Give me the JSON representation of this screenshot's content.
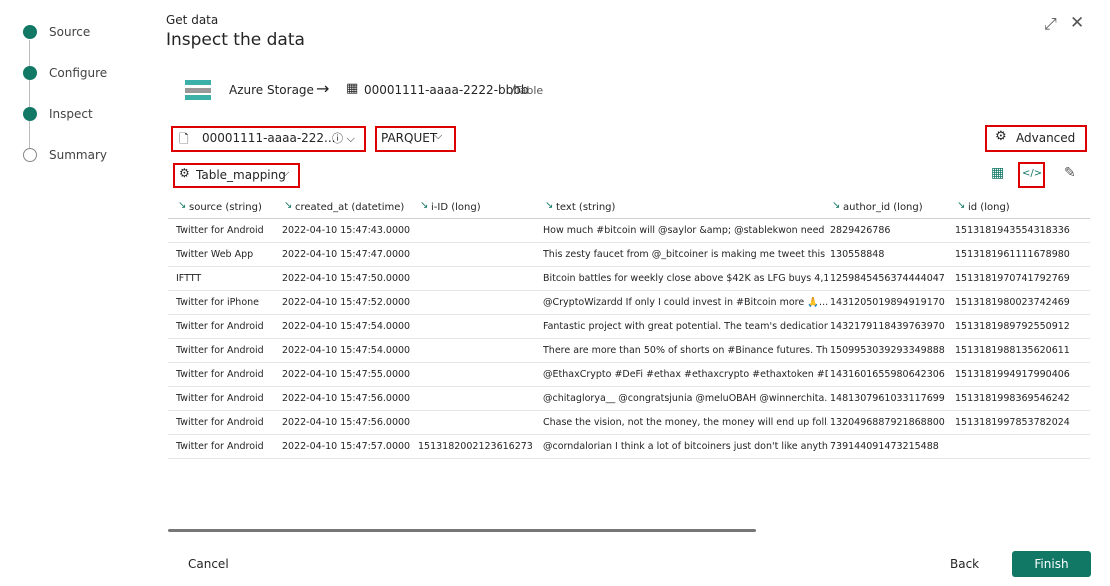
{
  "steps": [
    "Source",
    "Configure",
    "Inspect",
    "Summary"
  ],
  "header": {
    "subtitle": "Get data",
    "title": "Inspect the data"
  },
  "source": {
    "name": "Azure Storage",
    "target": "00001111-aaaa-2222-bbbb",
    "suffix": "/Table"
  },
  "toolbar": {
    "file": "00001111-aaaa-222...",
    "format": "PARQUET",
    "advanced": "Advanced",
    "mapping": "Table_mapping"
  },
  "table": {
    "columns": [
      "source (string)",
      "created_at (datetime)",
      "i-ID (long)",
      "text (string)",
      "author_id (long)",
      "id (long)"
    ],
    "rows": [
      [
        "Twitter for Android",
        "2022-04-10 15:47:43.0000",
        null,
        "How much #bitcoin will @saylor &amp; @stablekwon need ...",
        "2829426786",
        "1513181943554318336"
      ],
      [
        "Twitter Web App",
        "2022-04-10 15:47:47.0000",
        null,
        "This zesty faucet from @_bitcoiner is making me tweet this ...",
        "130558848",
        "1513181961111678980"
      ],
      [
        "IFTTT",
        "2022-04-10 15:47:50.0000",
        null,
        "Bitcoin battles for weekly close above $42K as LFG buys 4,1...",
        "1259845456374444047",
        "1513181970741792769"
      ],
      [
        "Twitter for iPhone",
        "2022-04-10 15:47:52.0000",
        null,
        "@CryptoWizardd If only I could invest in #Bitcoin more 🙏...",
        "1431205019894919170",
        "1513181980023742469"
      ],
      [
        "Twitter for Android",
        "2022-04-10 15:47:54.0000",
        null,
        "Fantastic project with great potential. The team's dedication...",
        "1432179118439763970",
        "1513181989792550912"
      ],
      [
        "Twitter for Android",
        "2022-04-10 15:47:54.0000",
        null,
        "There are more than 50% of shorts on #Binance futures. Th...",
        "1509953039293349888",
        "1513181988135620611"
      ],
      [
        "Twitter for Android",
        "2022-04-10 15:47:55.0000",
        null,
        "@EthaxCrypto #DeFi #ethax #ethaxcrypto #ethaxtoken #DE...",
        "1431601655980642306",
        "1513181994917990406"
      ],
      [
        "Twitter for Android",
        "2022-04-10 15:47:56.0000",
        null,
        "@chitaglorya__ @congratsjunia @meluOBAH @winnerchita...",
        "1481307961033117699",
        "1513181998369546242"
      ],
      [
        "Twitter for Android",
        "2022-04-10 15:47:56.0000",
        null,
        "Chase the vision, not the money, the money will end up foll...",
        "1320496887921868800",
        "1513181997853782024"
      ],
      [
        "Twitter for Android",
        "2022-04-10 15:47:57.0000",
        "1513182002123616273",
        "@corndalorian I think a lot of bitcoiners just don't like anyth...",
        "739144091473215488",
        null
      ]
    ]
  },
  "footer": {
    "cancel": "Cancel",
    "back": "Back",
    "finish": "Finish"
  }
}
